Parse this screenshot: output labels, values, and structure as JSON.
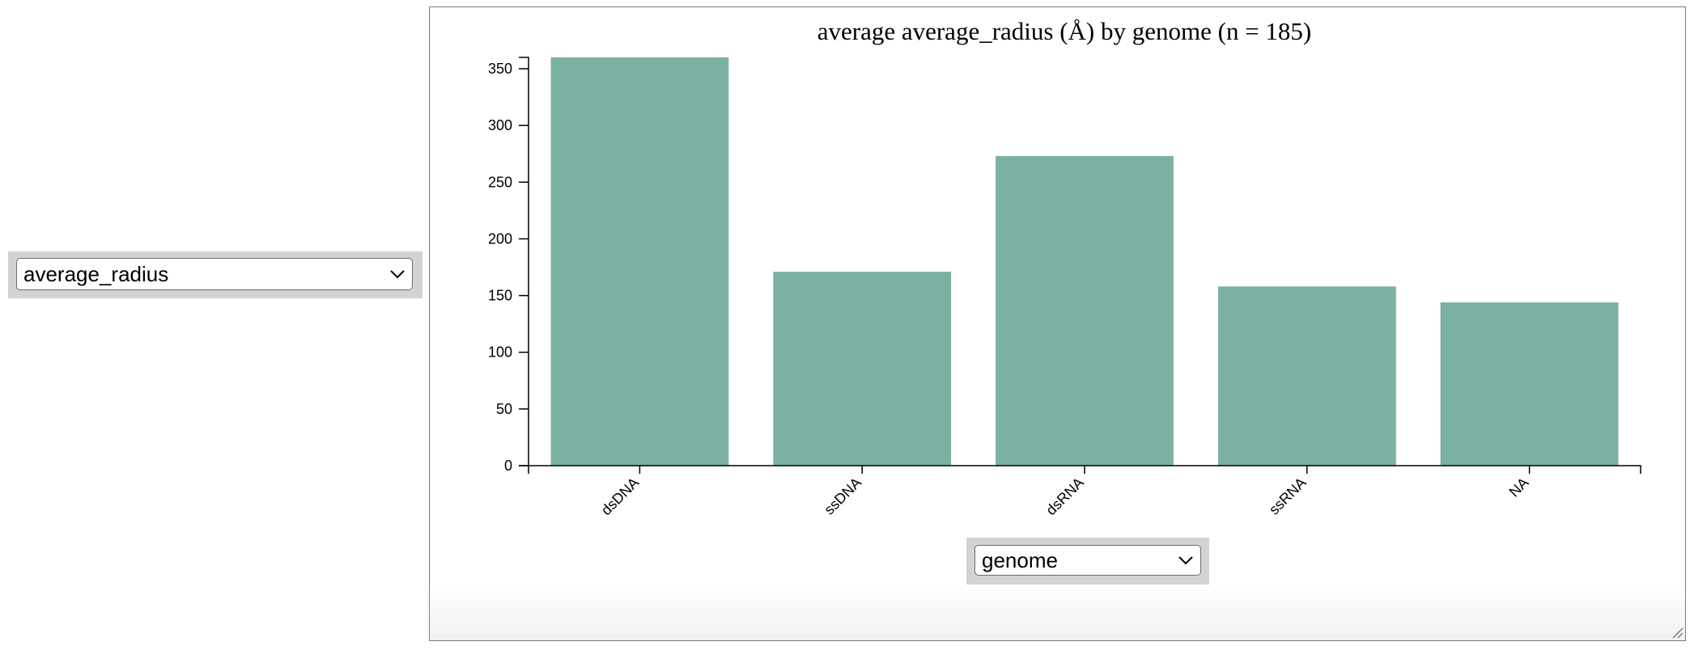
{
  "controls": {
    "y_select": {
      "value": "average_radius"
    },
    "x_select": {
      "value": "genome"
    }
  },
  "chart_data": {
    "type": "bar",
    "title": "average average_radius (Å) by genome (n = 185)",
    "categories": [
      "dsDNA",
      "ssDNA",
      "dsRNA",
      "ssRNA",
      "NA"
    ],
    "values": [
      360,
      171,
      273,
      158,
      144
    ],
    "ylim": [
      0,
      360
    ],
    "yticks": [
      0,
      50,
      100,
      150,
      200,
      250,
      300,
      350
    ],
    "xlabel": "",
    "ylabel": "",
    "grid": false,
    "bar_color": "#7bb1a3"
  }
}
